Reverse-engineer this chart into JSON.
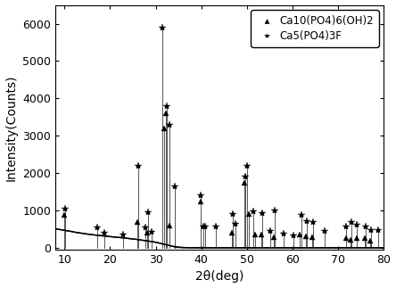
{
  "title": "",
  "xlabel": "2θ(deg)",
  "ylabel": "Intensity(Counts)",
  "xlim": [
    8,
    80
  ],
  "ylim": [
    -50,
    6500
  ],
  "yticks": [
    0,
    1000,
    2000,
    3000,
    4000,
    5000,
    6000
  ],
  "xticks": [
    10,
    20,
    30,
    40,
    50,
    60,
    70,
    80
  ],
  "background_color": "#ffffff",
  "legend_label_triangle": "Ca10(PO4)6(OH)2",
  "legend_label_star": "Ca5(PO4)3F",
  "triangle_peaks": [
    [
      10.0,
      870
    ],
    [
      25.9,
      700
    ],
    [
      28.2,
      400
    ],
    [
      31.75,
      3200
    ],
    [
      32.2,
      3600
    ],
    [
      33.0,
      600
    ],
    [
      39.8,
      1250
    ],
    [
      46.7,
      400
    ],
    [
      49.5,
      1750
    ],
    [
      50.5,
      900
    ],
    [
      51.8,
      350
    ],
    [
      53.2,
      350
    ],
    [
      55.8,
      280
    ],
    [
      61.6,
      350
    ],
    [
      63.0,
      300
    ],
    [
      64.3,
      280
    ],
    [
      71.8,
      250
    ],
    [
      72.7,
      220
    ],
    [
      74.0,
      260
    ],
    [
      75.9,
      250
    ],
    [
      77.0,
      200
    ]
  ],
  "star_peaks": [
    [
      10.15,
      1050
    ],
    [
      17.2,
      550
    ],
    [
      18.8,
      400
    ],
    [
      22.8,
      350
    ],
    [
      26.1,
      2200
    ],
    [
      27.8,
      550
    ],
    [
      28.4,
      950
    ],
    [
      29.1,
      420
    ],
    [
      31.55,
      5900
    ],
    [
      32.35,
      3800
    ],
    [
      33.05,
      3300
    ],
    [
      34.1,
      1650
    ],
    [
      39.9,
      1400
    ],
    [
      40.4,
      580
    ],
    [
      40.9,
      580
    ],
    [
      43.1,
      580
    ],
    [
      46.8,
      900
    ],
    [
      47.4,
      650
    ],
    [
      49.6,
      1900
    ],
    [
      50.0,
      2200
    ],
    [
      51.3,
      980
    ],
    [
      53.3,
      920
    ],
    [
      55.0,
      440
    ],
    [
      56.0,
      1000
    ],
    [
      58.0,
      390
    ],
    [
      60.1,
      330
    ],
    [
      62.0,
      870
    ],
    [
      63.1,
      720
    ],
    [
      64.4,
      700
    ],
    [
      67.0,
      440
    ],
    [
      71.8,
      580
    ],
    [
      72.8,
      680
    ],
    [
      74.1,
      620
    ],
    [
      76.0,
      570
    ],
    [
      77.1,
      480
    ],
    [
      78.8,
      480
    ]
  ],
  "hump_x": [
    8,
    9,
    10,
    11,
    12,
    13,
    14,
    15,
    16,
    17,
    18,
    19,
    20,
    21,
    22,
    23,
    24,
    25,
    26,
    27,
    28,
    29,
    30,
    31,
    32,
    33,
    34,
    35,
    36,
    38,
    40,
    45,
    50,
    55,
    60,
    65,
    70,
    75,
    80
  ],
  "hump_y": [
    510,
    490,
    470,
    450,
    425,
    405,
    385,
    368,
    352,
    338,
    325,
    312,
    300,
    290,
    278,
    265,
    252,
    238,
    222,
    205,
    188,
    170,
    150,
    120,
    90,
    60,
    35,
    18,
    8,
    3,
    1,
    0,
    0,
    0,
    0,
    0,
    0,
    0,
    0
  ]
}
